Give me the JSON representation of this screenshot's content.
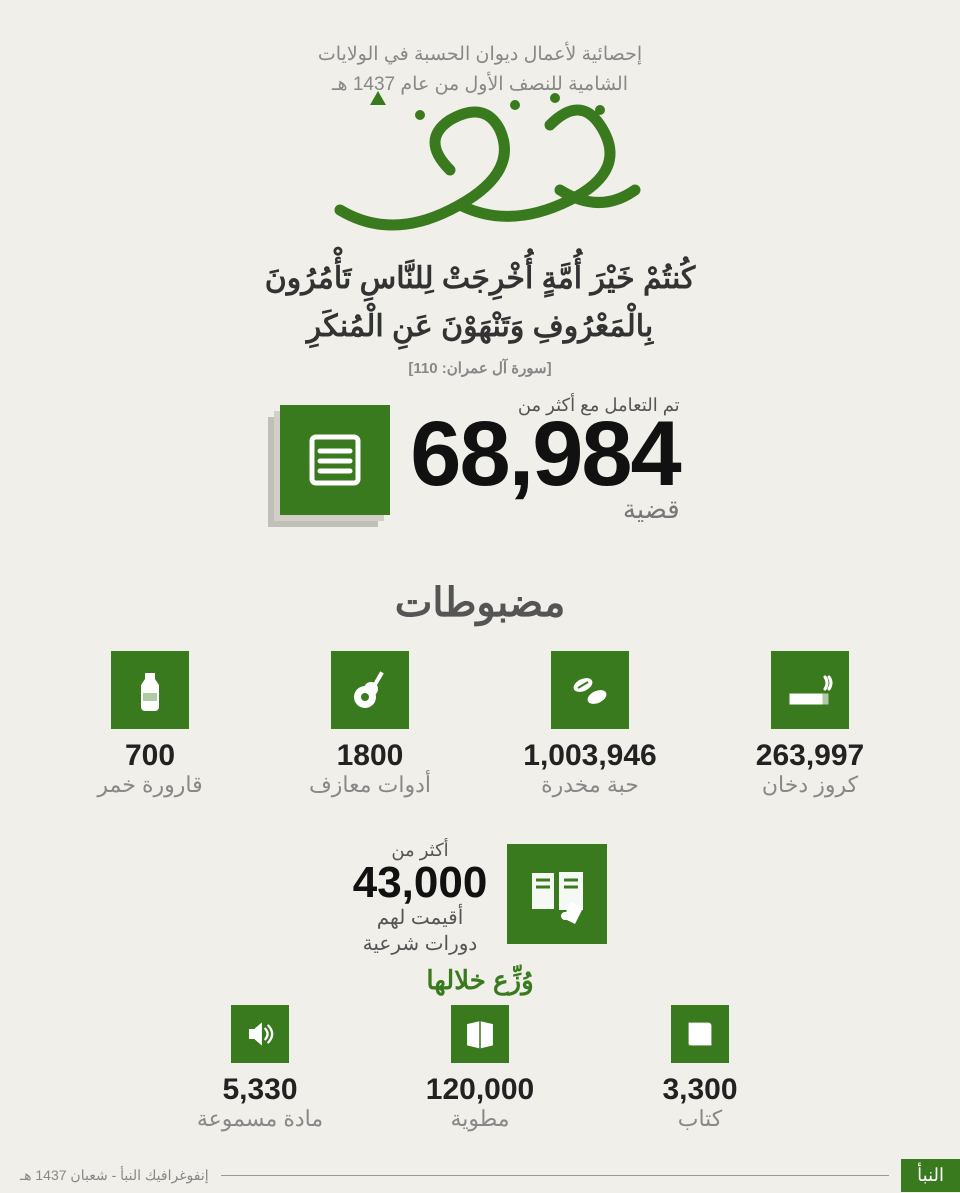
{
  "colors": {
    "accent": "#3a7a1f",
    "bg": "#f0efe9",
    "text": "#444",
    "muted": "#888",
    "dark": "#111"
  },
  "header": {
    "line1": "إحصائية لأعمال ديوان الحسبة في الولايات",
    "line2": "الشامية للنصف الأول من عام 1437 هـ"
  },
  "title_calligraphy": "الحسبة",
  "verse": {
    "l1": "كُنتُمْ خَيْرَ أُمَّةٍ أُخْرِجَتْ لِلنَّاسِ تَأْمُرُونَ",
    "l2": "بِالْمَعْرُوفِ وَتَنْهَوْنَ عَنِ الْمُنكَرِ",
    "ref": "[سورة آل عمران: 110]"
  },
  "main_stat": {
    "pre": "تم التعامل مع أكثر من",
    "value": "68,984",
    "unit": "قضية"
  },
  "seizures": {
    "title": "مضبوطات",
    "items": [
      {
        "icon": "cigarette",
        "value": "263,997",
        "label": "كروز دخان"
      },
      {
        "icon": "pills",
        "value": "1,003,946",
        "label": "حبة مخدرة"
      },
      {
        "icon": "guitar",
        "value": "1800",
        "label": "أدوات معازف"
      },
      {
        "icon": "bottle",
        "value": "700",
        "label": "قارورة خمر"
      }
    ]
  },
  "courses": {
    "pre": "أكثر من",
    "value": "43,000",
    "post1": "أقيمت لهم",
    "post2": "دورات شرعية"
  },
  "distributed": {
    "title": "وُزِّع خلالها",
    "items": [
      {
        "icon": "book",
        "value": "3,300",
        "label": "كتاب"
      },
      {
        "icon": "booklet",
        "value": "120,000",
        "label": "مطوية"
      },
      {
        "icon": "audio",
        "value": "5,330",
        "label": "مادة مسموعة"
      }
    ]
  },
  "footer": {
    "logo": "النبأ",
    "caption": "إنفوغرافيك النبأ - شعبان 1437 هـ"
  }
}
